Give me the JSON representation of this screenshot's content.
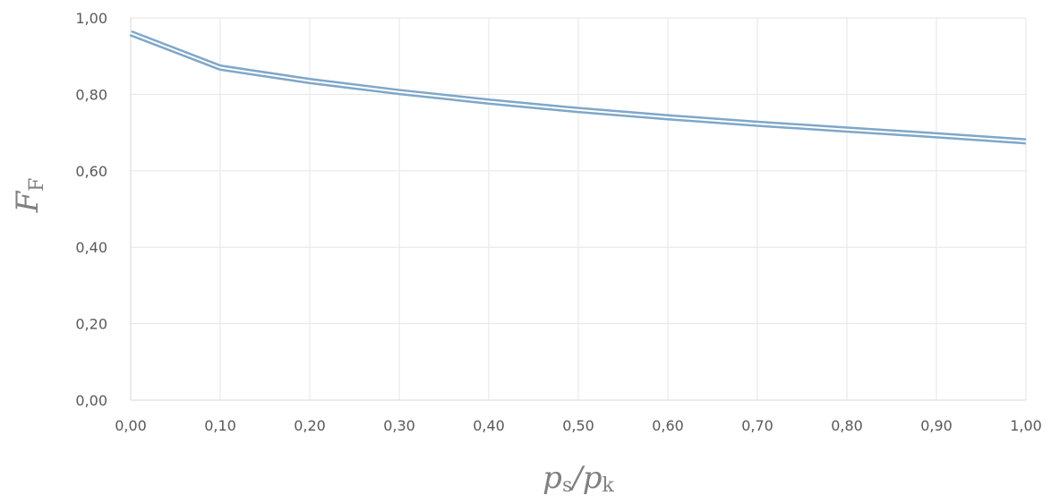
{
  "chart_data": {
    "type": "line",
    "title": "",
    "xlabel": {
      "main": "p",
      "sub1": "s",
      "slash": "/",
      "main2": "p",
      "sub2": "k"
    },
    "ylabel": {
      "main": "F",
      "sub": "F"
    },
    "xlim": [
      0,
      1
    ],
    "ylim": [
      0,
      1
    ],
    "grid": true,
    "legend": "none",
    "x_tick_labels": [
      "0,00",
      "0,10",
      "0,20",
      "0,30",
      "0,40",
      "0,50",
      "0,60",
      "0,70",
      "0,80",
      "0,90",
      "1,00"
    ],
    "y_tick_labels": [
      "0,00",
      "0,20",
      "0,40",
      "0,60",
      "0,80",
      "1,00"
    ],
    "x_ticks": [
      0,
      0.1,
      0.2,
      0.3,
      0.4,
      0.5,
      0.6,
      0.7,
      0.8,
      0.9,
      1.0
    ],
    "y_ticks": [
      0,
      0.2,
      0.4,
      0.6,
      0.8,
      1.0
    ],
    "x": [
      0,
      0.1,
      0.2,
      0.3,
      0.4,
      0.5,
      0.6,
      0.7,
      0.8,
      0.9,
      1.0
    ],
    "series": [
      {
        "values": [
          0.96,
          0.87,
          0.835,
          0.806,
          0.781,
          0.759,
          0.74,
          0.723,
          0.708,
          0.693,
          0.677
        ]
      }
    ],
    "colors": {
      "line": "#7FA7C9",
      "grid": "#E6E6E6",
      "axis": "#D9D9D9"
    }
  }
}
